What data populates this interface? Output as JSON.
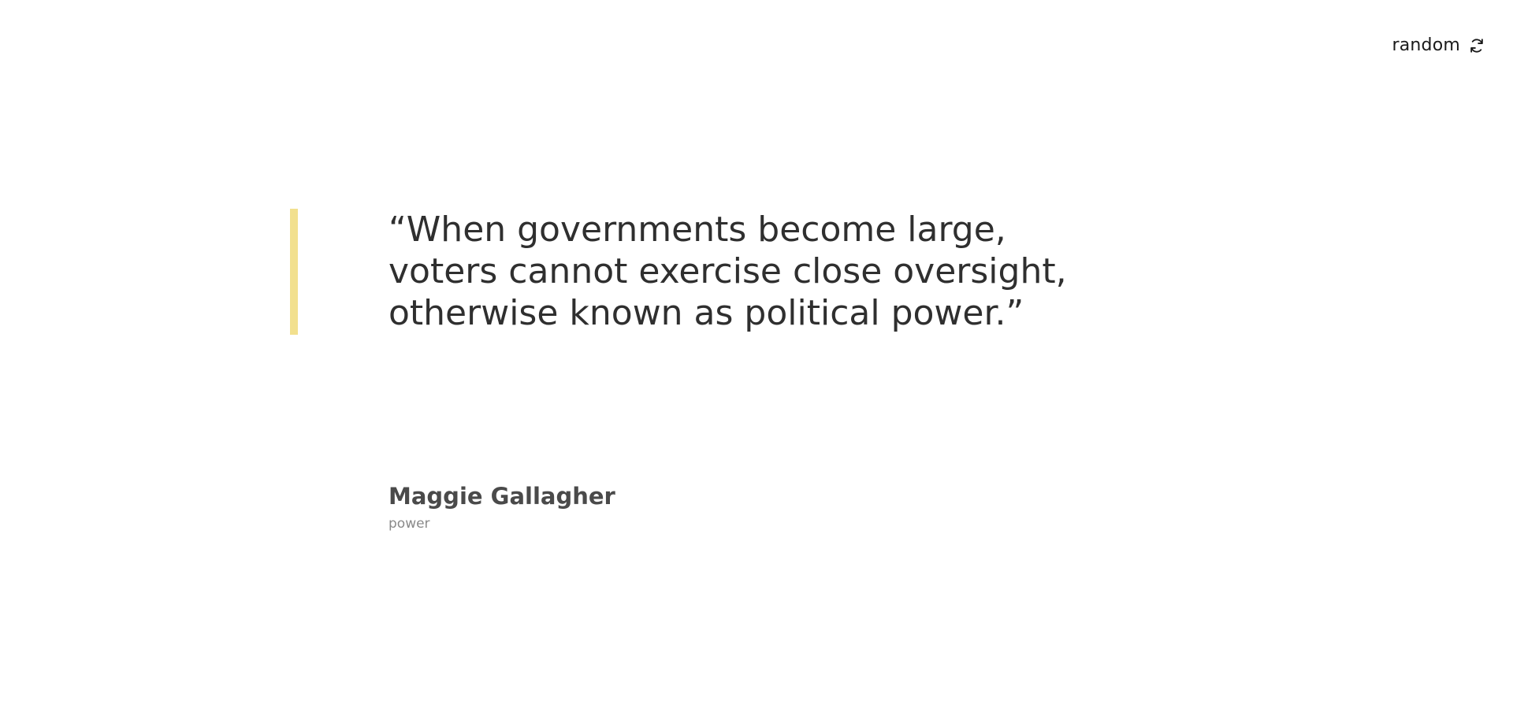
{
  "header": {
    "random_label": "random",
    "random_icon": "refresh-icon"
  },
  "quote": {
    "text": "“When governments become large, voters cannot exercise close oversight, otherwise known as political power.”",
    "accent_color": "#f2e08e"
  },
  "author": {
    "name": "Maggie Gallagher",
    "tag": "power"
  }
}
